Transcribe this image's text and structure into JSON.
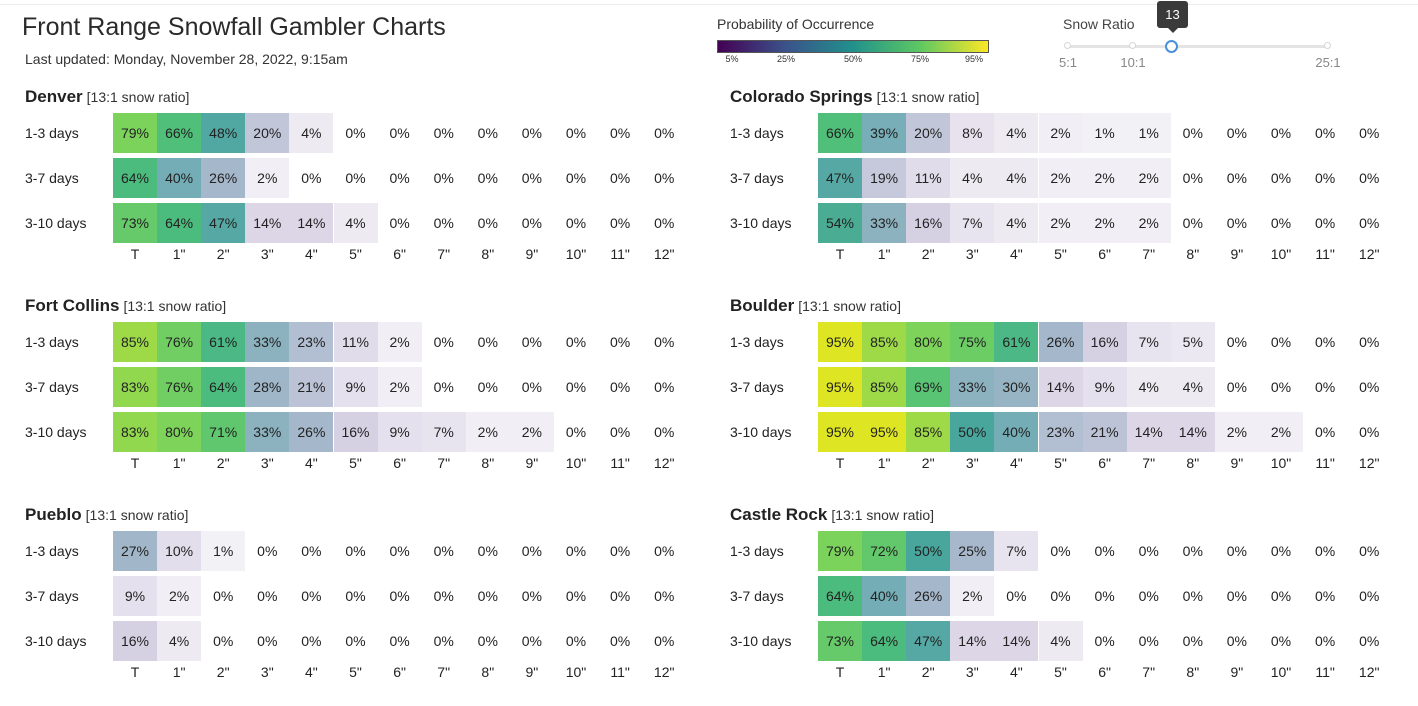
{
  "header": {
    "title": "Front Range Snowfall Gambler Charts",
    "last_updated": "Last updated: Monday, November 28, 2022, 9:15am"
  },
  "legend": {
    "title": "Probability of Occurrence",
    "ticks": [
      "5%",
      "25%",
      "50%",
      "75%",
      "95%"
    ],
    "colors": [
      "#440154",
      "#3b528b",
      "#21918c",
      "#5ec962",
      "#fde725"
    ]
  },
  "snow_ratio_slider": {
    "title": "Snow Ratio",
    "value": "13",
    "marks": [
      "5:1",
      "10:1",
      "25:1"
    ]
  },
  "chart_data": {
    "type": "heatmap",
    "rows": [
      "1-3 days",
      "3-7 days",
      "3-10 days"
    ],
    "columns": [
      "T",
      "1\"",
      "2\"",
      "3\"",
      "4\"",
      "5\"",
      "6\"",
      "7\"",
      "8\"",
      "9\"",
      "10\"",
      "11\"",
      "12\""
    ],
    "stations": [
      {
        "name": "Denver",
        "ratio_label": "[13:1 snow ratio]",
        "values": [
          [
            79,
            66,
            48,
            20,
            4,
            0,
            0,
            0,
            0,
            0,
            0,
            0,
            0
          ],
          [
            64,
            40,
            26,
            2,
            0,
            0,
            0,
            0,
            0,
            0,
            0,
            0,
            0
          ],
          [
            73,
            64,
            47,
            14,
            14,
            4,
            0,
            0,
            0,
            0,
            0,
            0,
            0
          ]
        ]
      },
      {
        "name": "Colorado Springs",
        "ratio_label": "[13:1 snow ratio]",
        "values": [
          [
            66,
            39,
            20,
            8,
            4,
            2,
            1,
            1,
            0,
            0,
            0,
            0,
            0
          ],
          [
            47,
            19,
            11,
            4,
            4,
            2,
            2,
            2,
            0,
            0,
            0,
            0,
            0
          ],
          [
            54,
            33,
            16,
            7,
            4,
            2,
            2,
            2,
            0,
            0,
            0,
            0,
            0
          ]
        ]
      },
      {
        "name": "Fort Collins",
        "ratio_label": "[13:1 snow ratio]",
        "values": [
          [
            85,
            76,
            61,
            33,
            23,
            11,
            2,
            0,
            0,
            0,
            0,
            0,
            0
          ],
          [
            83,
            76,
            64,
            28,
            21,
            9,
            2,
            0,
            0,
            0,
            0,
            0,
            0
          ],
          [
            83,
            80,
            71,
            33,
            26,
            16,
            9,
            7,
            2,
            2,
            0,
            0,
            0
          ]
        ]
      },
      {
        "name": "Boulder",
        "ratio_label": "[13:1 snow ratio]",
        "values": [
          [
            95,
            85,
            80,
            75,
            61,
            26,
            16,
            7,
            5,
            0,
            0,
            0,
            0
          ],
          [
            95,
            85,
            69,
            33,
            30,
            14,
            9,
            4,
            4,
            0,
            0,
            0,
            0
          ],
          [
            95,
            95,
            85,
            50,
            40,
            23,
            21,
            14,
            14,
            2,
            2,
            0,
            0
          ]
        ]
      },
      {
        "name": "Pueblo",
        "ratio_label": "[13:1 snow ratio]",
        "values": [
          [
            27,
            10,
            1,
            0,
            0,
            0,
            0,
            0,
            0,
            0,
            0,
            0,
            0
          ],
          [
            9,
            2,
            0,
            0,
            0,
            0,
            0,
            0,
            0,
            0,
            0,
            0,
            0
          ],
          [
            16,
            4,
            0,
            0,
            0,
            0,
            0,
            0,
            0,
            0,
            0,
            0,
            0
          ]
        ]
      },
      {
        "name": "Castle Rock",
        "ratio_label": "[13:1 snow ratio]",
        "values": [
          [
            79,
            72,
            50,
            25,
            7,
            0,
            0,
            0,
            0,
            0,
            0,
            0,
            0
          ],
          [
            64,
            40,
            26,
            2,
            0,
            0,
            0,
            0,
            0,
            0,
            0,
            0,
            0
          ],
          [
            73,
            64,
            47,
            14,
            14,
            4,
            0,
            0,
            0,
            0,
            0,
            0,
            0
          ]
        ]
      }
    ],
    "value_suffix": "%"
  }
}
